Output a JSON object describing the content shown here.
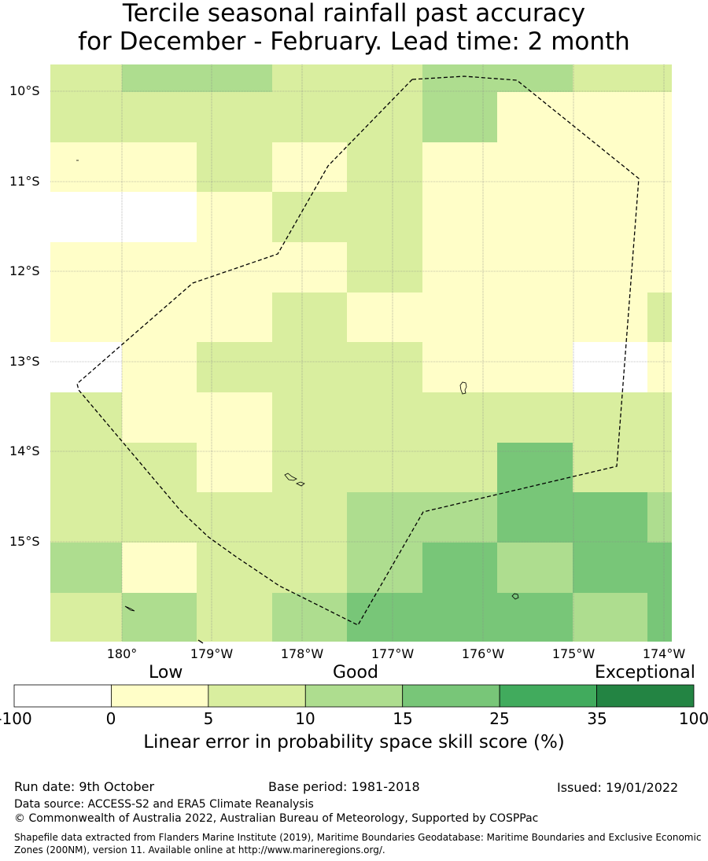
{
  "title": {
    "line1": "Tercile seasonal rainfall past accuracy",
    "line2": "for December - February. Lead time: 2 month"
  },
  "map": {
    "lat_labels": [
      "10°S",
      "11°S",
      "12°S",
      "13°S",
      "14°S",
      "15°S"
    ],
    "lon_labels": [
      "180°",
      "179°W",
      "178°W",
      "177°W",
      "176°W",
      "175°W",
      "174°W"
    ],
    "boundary_style": "dashed black line (maritime boundary / EEZ)",
    "grid": true,
    "colors": {
      "white": "#ffffff",
      "c0_5": "#fffec8",
      "c5_10": "#d9ee9f",
      "c10_15": "#aedd8f",
      "c15_25": "#78c678",
      "c25_35": "#41ab5d",
      "c35_100": "#238443"
    },
    "skill_grid": {
      "rows_top_to_bottom": [
        [
          "c5_10",
          "c10_15",
          "c10_15",
          "c5_10",
          "c5_10",
          "c10_15",
          "c10_15",
          "c5_10",
          "c5_10"
        ],
        [
          "c5_10",
          "c5_10",
          "c5_10",
          "c5_10",
          "c5_10",
          "c10_15",
          "c0_5",
          "c0_5",
          "c0_5"
        ],
        [
          "c0_5",
          "c0_5",
          "c5_10",
          "c0_5",
          "c5_10",
          "c0_5",
          "c0_5",
          "c0_5",
          "c0_5"
        ],
        [
          "white",
          "white",
          "c0_5",
          "c5_10",
          "c5_10",
          "c0_5",
          "c0_5",
          "c0_5",
          "c0_5"
        ],
        [
          "c0_5",
          "c0_5",
          "c0_5",
          "c0_5",
          "c5_10",
          "c0_5",
          "c0_5",
          "c0_5",
          "c0_5"
        ],
        [
          "c0_5",
          "c0_5",
          "c0_5",
          "c5_10",
          "c0_5",
          "c0_5",
          "c0_5",
          "c0_5",
          "c5_10"
        ],
        [
          "white",
          "c0_5",
          "c5_10",
          "c5_10",
          "c5_10",
          "c0_5",
          "c0_5",
          "white",
          "c0_5"
        ],
        [
          "c5_10",
          "c0_5",
          "c0_5",
          "c5_10",
          "c5_10",
          "c5_10",
          "c5_10",
          "c5_10",
          "c5_10"
        ],
        [
          "c5_10",
          "c5_10",
          "c0_5",
          "c5_10",
          "c5_10",
          "c5_10",
          "c15_25",
          "c5_10",
          "c5_10"
        ],
        [
          "c5_10",
          "c5_10",
          "c5_10",
          "c5_10",
          "c10_15",
          "c10_15",
          "c15_25",
          "c15_25",
          "c10_15"
        ],
        [
          "c10_15",
          "c0_5",
          "c5_10",
          "c5_10",
          "c10_15",
          "c15_25",
          "c10_15",
          "c15_25",
          "c15_25"
        ],
        [
          "c5_10",
          "c10_15",
          "c5_10",
          "c10_15",
          "c15_25",
          "c15_25",
          "c15_25",
          "c10_15",
          "c15_25"
        ]
      ]
    }
  },
  "colorbar": {
    "categories": [
      "Low",
      "Good",
      "Exceptional"
    ],
    "boundaries": [
      "-100",
      "0",
      "5",
      "10",
      "15",
      "25",
      "35",
      "100"
    ],
    "colors": [
      "#ffffff",
      "#fffec8",
      "#d9ee9f",
      "#aedd8f",
      "#78c678",
      "#41ab5d",
      "#238443"
    ],
    "title": "Linear error in probability space skill score (%)"
  },
  "footer": {
    "run_date": "Run date: 9th October",
    "base_period": "Base period: 1981-2018",
    "issued": "Issued: 19/01/2022",
    "data_source": "Data source: ACCESS-S2 and ERA5 Climate Reanalysis",
    "copyright": "© Commonwealth of Australia 2022, Australian Bureau of Meteorology, Supported by COSPPac",
    "shapefile": "Shapefile data extracted from Flanders Marine Institute (2019), Maritime Boundaries Geodatabase: Maritime Boundaries and Exclusive Economic Zones (200NM), version 11. Available online at http://www.marineregions.org/."
  }
}
